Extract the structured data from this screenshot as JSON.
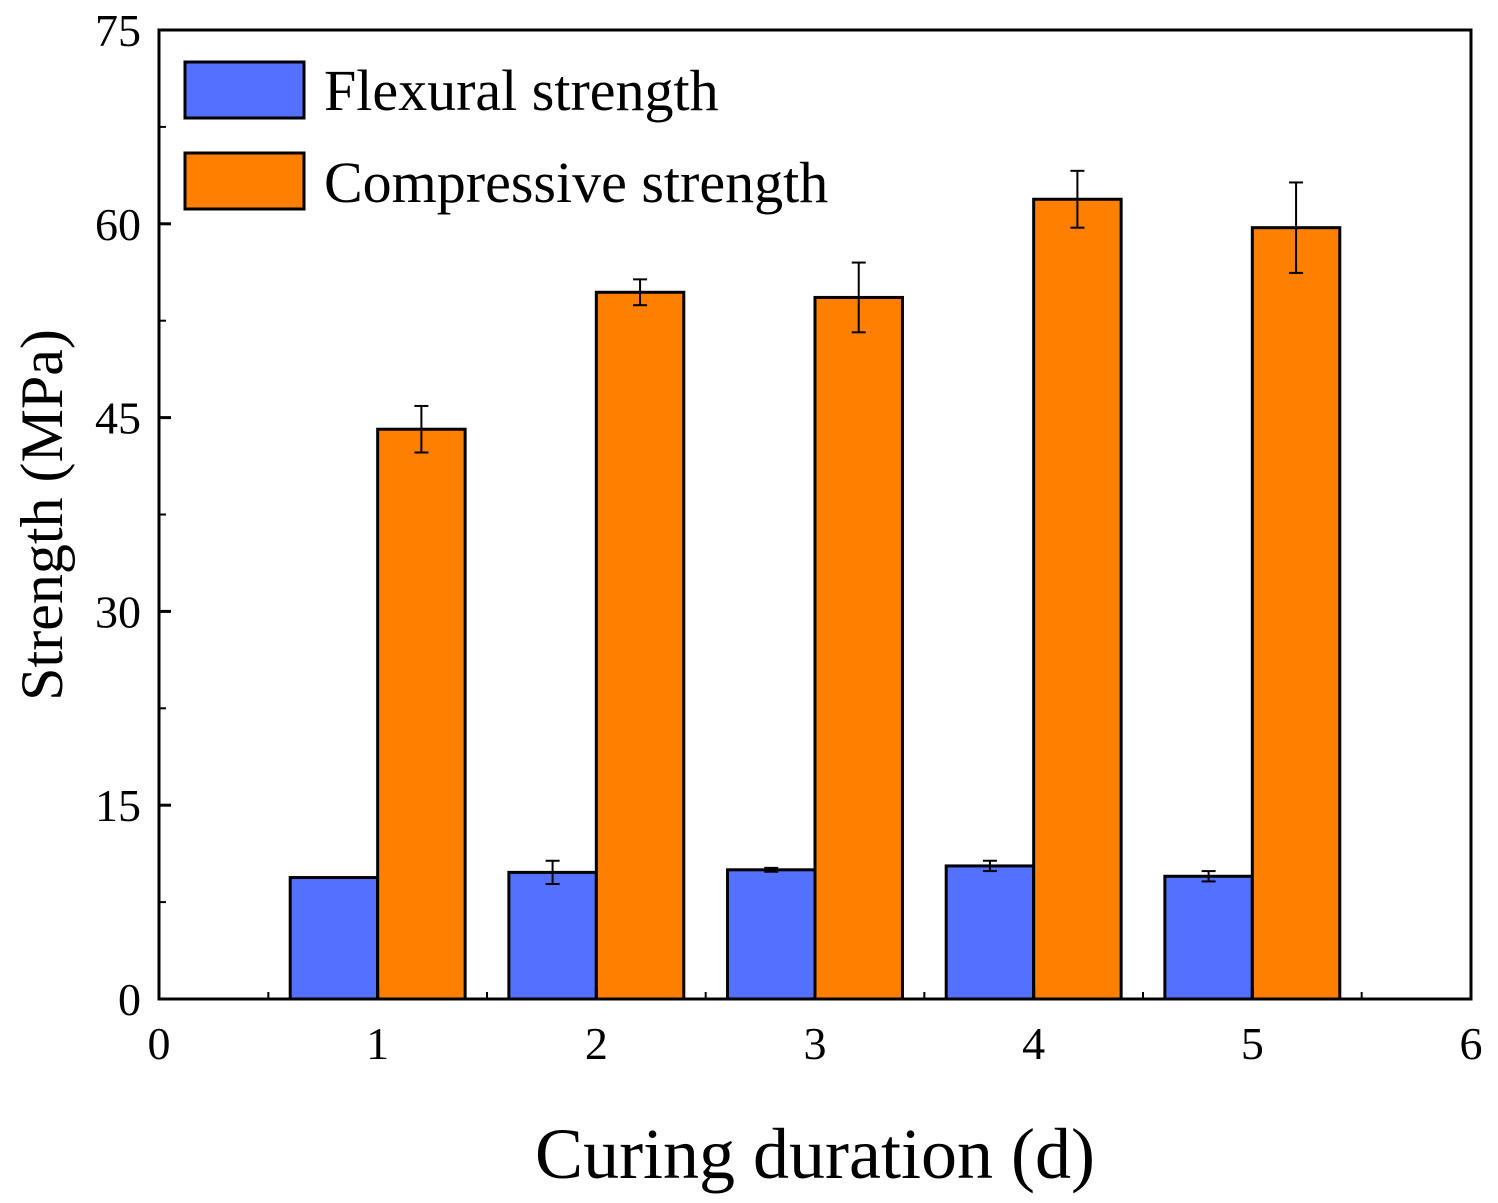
{
  "chart_data": {
    "type": "bar",
    "title": "",
    "xlabel": "Curing duration (d)",
    "ylabel": "Strength (MPa)",
    "x": [
      1,
      2,
      3,
      4,
      5
    ],
    "xlim": [
      0,
      6
    ],
    "ylim": [
      0,
      75
    ],
    "xticks": [
      "0",
      "1",
      "2",
      "3",
      "4",
      "5",
      "6"
    ],
    "yticks": [
      "0",
      "15",
      "30",
      "45",
      "60",
      "75"
    ],
    "grid": false,
    "legend_position": "top-left",
    "series": [
      {
        "name": "Flexural strength",
        "color": "#5470ff",
        "values": [
          9.4,
          9.8,
          10.0,
          10.3,
          9.5
        ],
        "errors": [
          0.0,
          0.9,
          0.15,
          0.4,
          0.4
        ]
      },
      {
        "name": "Compressive strength",
        "color": "#ff8000",
        "values": [
          44.1,
          54.7,
          54.3,
          61.9,
          59.7
        ],
        "errors": [
          1.8,
          1.0,
          2.7,
          2.2,
          3.5
        ]
      }
    ]
  }
}
